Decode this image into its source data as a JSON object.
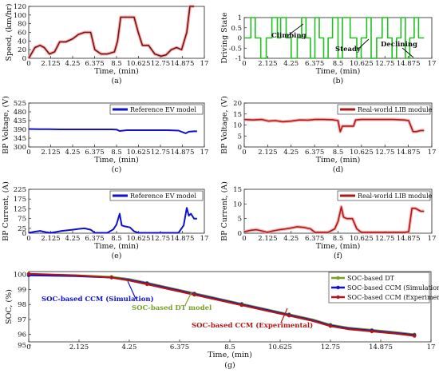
{
  "panels": [
    {
      "id": "a",
      "caption": "(a)",
      "xlabel": "Time, (min)",
      "ylabel": "Speed, (km/hr)",
      "x_ticks": [
        "0",
        "2.125",
        "4.25",
        "6.375",
        "8.5",
        "10.625",
        "12.75",
        "14.875",
        "17"
      ],
      "y_ticks": [
        "0",
        "20",
        "40",
        "60",
        "80",
        "100",
        "120"
      ],
      "legend": null,
      "annotations": []
    },
    {
      "id": "b",
      "caption": "(b)",
      "xlabel": "Time, (min)",
      "ylabel": "Driving State",
      "x_ticks": [
        "0",
        "2.125",
        "4.25",
        "6.375",
        "8.5",
        "10.625",
        "12.75",
        "14.875",
        "17"
      ],
      "y_ticks": [
        "-1",
        "-0.5",
        "0",
        "0.5",
        "1"
      ],
      "legend": null,
      "annotations": [
        "Climbing",
        "Steady",
        "Declining"
      ]
    },
    {
      "id": "c",
      "caption": "(c)",
      "xlabel": "Time, (min)",
      "ylabel": "BP Voltage, (V)",
      "x_ticks": [
        "0",
        "2.125",
        "4.25",
        "6.375",
        "8.5",
        "10.625",
        "12.75",
        "14.875",
        "17"
      ],
      "y_ticks": [
        "300",
        "345",
        "390",
        "435",
        "480",
        "525"
      ],
      "legend": "Reference EV model",
      "annotations": []
    },
    {
      "id": "d",
      "caption": "(d)",
      "xlabel": "Time, (min)",
      "ylabel": "BP Voltage, (V)",
      "x_ticks": [
        "0",
        "2.125",
        "4.25",
        "6.375",
        "8.5",
        "10.625",
        "12.75",
        "14.875",
        "17"
      ],
      "y_ticks": [
        "0",
        "5",
        "10",
        "15",
        "20"
      ],
      "legend": "Real-world LIB module",
      "annotations": []
    },
    {
      "id": "e",
      "caption": "(e)",
      "xlabel": "Time, (min)",
      "ylabel": "BP Current, (A)",
      "x_ticks": [
        "0",
        "2.125",
        "4.25",
        "6.375",
        "8.5",
        "10.625",
        "12.75",
        "14.875",
        "17"
      ],
      "y_ticks": [
        "0",
        "25",
        "75",
        "125",
        "175",
        "225"
      ],
      "legend": "Reference EV model",
      "annotations": []
    },
    {
      "id": "f",
      "caption": "(f)",
      "xlabel": "Time, (min)",
      "ylabel": "BP Current, (A)",
      "x_ticks": [
        "0",
        "2.125",
        "4.25",
        "6.375",
        "8.5",
        "10.625",
        "12.75",
        "14.875",
        "17"
      ],
      "y_ticks": [
        "0",
        "5",
        "10",
        "15"
      ],
      "legend": "Real-world LIB module",
      "annotations": []
    },
    {
      "id": "g",
      "caption": "(g)",
      "xlabel": "Time, (min)",
      "ylabel": "SOC, (%)",
      "x_ticks": [
        "0",
        "2.125",
        "4.25",
        "6.375",
        "8.5",
        "10.625",
        "12.75",
        "14.875",
        "17"
      ],
      "y_ticks": [
        "95",
        "96",
        "97",
        "98",
        "99",
        "100"
      ],
      "legend": [
        "SOC-based DT",
        "SOC-based CCM (Simulation)",
        "SOC-based CCM (Experimental)"
      ],
      "annotations": [
        "SOC-based CCM (Simulation)",
        "SOC-based DT model",
        "SOC-based CCM (Experimental)"
      ]
    }
  ],
  "colors": {
    "blue": "#1010d0",
    "red": "#b01818",
    "green": "#20c020",
    "olive": "#7aa028",
    "pink": "#f0a0a0",
    "darkred": "#7a1010"
  },
  "chart_data": [
    {
      "panel": "a",
      "type": "line",
      "xlim": [
        0,
        17
      ],
      "ylim": [
        0,
        120
      ],
      "series": [
        {
          "name": "",
          "color": "#7a1010",
          "x": [
            0,
            0.6,
            1.1,
            1.5,
            2.0,
            2.5,
            3.0,
            3.6,
            4.25,
            4.8,
            5.4,
            6.0,
            6.4,
            7.0,
            7.6,
            8.3,
            8.6,
            8.9,
            9.5,
            10.2,
            10.6,
            11.0,
            11.6,
            12.2,
            12.8,
            13.3,
            13.8,
            14.3,
            14.8,
            15.3,
            15.6,
            16.0
          ],
          "y": [
            0,
            25,
            30,
            25,
            10,
            15,
            38,
            38,
            45,
            55,
            60,
            60,
            20,
            10,
            10,
            15,
            40,
            95,
            95,
            95,
            60,
            30,
            30,
            10,
            5,
            8,
            20,
            25,
            20,
            60,
            120,
            120
          ]
        }
      ]
    },
    {
      "panel": "b",
      "type": "line",
      "xlim": [
        0,
        17
      ],
      "ylim": [
        -1,
        1
      ],
      "series": [
        {
          "name": "",
          "color": "#20c020",
          "x": [
            0,
            0.6,
            0.6,
            1.0,
            1.0,
            1.5,
            1.5,
            2.0,
            2.0,
            2.5,
            2.5,
            3.0,
            3.0,
            3.3,
            3.3,
            3.8,
            3.8,
            4.25,
            4.25,
            4.8,
            4.8,
            5.2,
            5.2,
            5.6,
            5.6,
            6.0,
            6.0,
            6.4,
            6.4,
            6.8,
            6.8,
            7.2,
            7.2,
            7.6,
            7.6,
            8.0,
            8.0,
            8.5,
            8.5,
            8.9,
            8.9,
            9.6,
            9.6,
            10.2,
            10.2,
            10.6,
            10.6,
            11.1,
            11.1,
            11.5,
            11.5,
            12.0,
            12.0,
            12.5,
            12.5,
            13.0,
            13.0,
            13.4,
            13.4,
            13.8,
            13.8,
            14.2,
            14.2,
            14.6,
            14.6,
            15.0,
            15.0,
            15.4,
            15.4,
            15.8,
            15.8,
            16.3
          ],
          "y": [
            0,
            0,
            1,
            1,
            0,
            0,
            -1,
            -1,
            0,
            0,
            1,
            1,
            0,
            0,
            1,
            1,
            0,
            0,
            -1,
            -1,
            0,
            0,
            1,
            1,
            0,
            0,
            -1,
            -1,
            1,
            1,
            0,
            0,
            -1,
            -1,
            0,
            0,
            1,
            1,
            -1,
            -1,
            1,
            1,
            0,
            0,
            -1,
            -1,
            0,
            0,
            1,
            1,
            -1,
            -1,
            0,
            0,
            1,
            1,
            0,
            0,
            -1,
            -1,
            0,
            0,
            1,
            1,
            -1,
            -1,
            0,
            0,
            1,
            1,
            0,
            0
          ]
        }
      ]
    },
    {
      "panel": "c",
      "type": "line",
      "xlim": [
        0,
        17
      ],
      "ylim": [
        300,
        525
      ],
      "series": [
        {
          "name": "Reference EV model",
          "color": "#1010d0",
          "x": [
            0,
            1,
            2,
            3,
            4,
            5,
            6,
            7,
            8,
            8.5,
            8.8,
            9.5,
            10.5,
            11.5,
            12.5,
            13.5,
            14.5,
            15.2,
            15.5,
            16,
            16.3
          ],
          "y": [
            392,
            391,
            391,
            390,
            390,
            390,
            390,
            390,
            390,
            389,
            382,
            386,
            386,
            386,
            386,
            386,
            384,
            370,
            378,
            380,
            380
          ]
        }
      ]
    },
    {
      "panel": "d",
      "type": "line",
      "xlim": [
        0,
        17
      ],
      "ylim": [
        0,
        20
      ],
      "series": [
        {
          "name": "Real-world LIB module",
          "color": "#b01818",
          "x": [
            0,
            0.8,
            1.6,
            2.2,
            2.8,
            3.5,
            4.25,
            5.0,
            5.8,
            6.4,
            7.2,
            8.0,
            8.5,
            8.7,
            8.9,
            9.3,
            9.9,
            10.1,
            10.6,
            11.5,
            12.5,
            13.5,
            14.5,
            14.9,
            15.3,
            15.6,
            16.0,
            16.3
          ],
          "y": [
            12.5,
            12.3,
            12.5,
            11.8,
            12.0,
            11.5,
            11.8,
            12.3,
            12.2,
            12.5,
            12.5,
            12.4,
            12.0,
            7.0,
            9.5,
            9.5,
            9.5,
            12.3,
            12.5,
            12.5,
            12.5,
            12.5,
            12.3,
            12.0,
            7.0,
            7.0,
            7.5,
            7.5
          ]
        }
      ]
    },
    {
      "panel": "e",
      "type": "line",
      "xlim": [
        0,
        17
      ],
      "ylim": [
        0,
        225
      ],
      "series": [
        {
          "name": "Reference EV model",
          "color": "#1010d0",
          "x": [
            0,
            0.6,
            1.1,
            1.6,
            2.1,
            2.6,
            3.2,
            3.8,
            4.25,
            4.8,
            5.4,
            6.0,
            6.4,
            7.0,
            7.6,
            8.2,
            8.5,
            8.8,
            9.0,
            9.3,
            9.8,
            10.2,
            10.6,
            11.5,
            12.5,
            13.5,
            14.5,
            15.0,
            15.3,
            15.5,
            15.7,
            16.0,
            16.3
          ],
          "y": [
            2,
            8,
            12,
            6,
            2,
            6,
            12,
            15,
            18,
            22,
            25,
            18,
            2,
            2,
            2,
            20,
            45,
            100,
            40,
            35,
            30,
            10,
            2,
            2,
            2,
            2,
            2,
            40,
            130,
            90,
            100,
            75,
            75
          ]
        }
      ]
    },
    {
      "panel": "f",
      "type": "line",
      "xlim": [
        0,
        17
      ],
      "ylim": [
        0,
        15
      ],
      "series": [
        {
          "name": "Real-world LIB module",
          "color": "#b01818",
          "x": [
            0,
            0.6,
            1.1,
            1.6,
            2.1,
            2.6,
            3.2,
            3.8,
            4.25,
            4.8,
            5.4,
            6.0,
            6.4,
            7.0,
            7.6,
            8.2,
            8.5,
            8.8,
            9.0,
            9.3,
            9.8,
            10.2,
            10.6,
            11.5,
            12.5,
            13.5,
            14.5,
            14.9,
            15.2,
            15.5,
            16.0,
            16.3
          ],
          "y": [
            0.5,
            1.0,
            1.2,
            0.8,
            0.3,
            0.8,
            1.2,
            1.5,
            1.8,
            2.2,
            2.0,
            1.5,
            0.3,
            0.3,
            0.3,
            1.5,
            4.0,
            9.0,
            5.5,
            5.0,
            5.0,
            1.5,
            0.3,
            0.3,
            0.3,
            0.3,
            0.3,
            0.5,
            8.5,
            8.5,
            7.5,
            7.5
          ]
        }
      ]
    },
    {
      "panel": "g",
      "type": "line",
      "xlim": [
        0,
        17
      ],
      "ylim": [
        95.5,
        100.2
      ],
      "series": [
        {
          "name": "SOC-based DT",
          "color": "#7aa028",
          "x": [
            0,
            2,
            3.5,
            4.25,
            5,
            6,
            7,
            8,
            9,
            10,
            11,
            12,
            12.75,
            13.5,
            14.5,
            15.5,
            16.3
          ],
          "y": [
            100,
            99.95,
            99.85,
            99.7,
            99.45,
            99.1,
            98.75,
            98.4,
            98.05,
            97.7,
            97.35,
            97.0,
            96.65,
            96.45,
            96.3,
            96.15,
            96.0
          ]
        },
        {
          "name": "SOC-based CCM (Simulation)",
          "color": "#1010d0",
          "x": [
            0,
            2,
            3.5,
            4.25,
            5,
            6,
            7,
            8,
            9,
            10,
            11,
            12,
            12.75,
            13.5,
            14.5,
            15.5,
            16.3
          ],
          "y": [
            99.95,
            99.9,
            99.8,
            99.65,
            99.4,
            99.05,
            98.7,
            98.35,
            98.0,
            97.65,
            97.3,
            96.95,
            96.6,
            96.4,
            96.25,
            96.1,
            95.95
          ]
        },
        {
          "name": "SOC-based CCM (Experimental)",
          "color": "#b01818",
          "x": [
            0,
            2,
            3.5,
            4.25,
            5,
            6,
            7,
            8,
            9,
            10,
            11,
            12,
            12.75,
            13.5,
            14.5,
            15.5,
            16.3
          ],
          "y": [
            100.05,
            99.95,
            99.8,
            99.6,
            99.35,
            99.0,
            98.65,
            98.3,
            97.95,
            97.6,
            97.25,
            96.9,
            96.55,
            96.35,
            96.2,
            96.05,
            95.9
          ]
        }
      ]
    }
  ]
}
